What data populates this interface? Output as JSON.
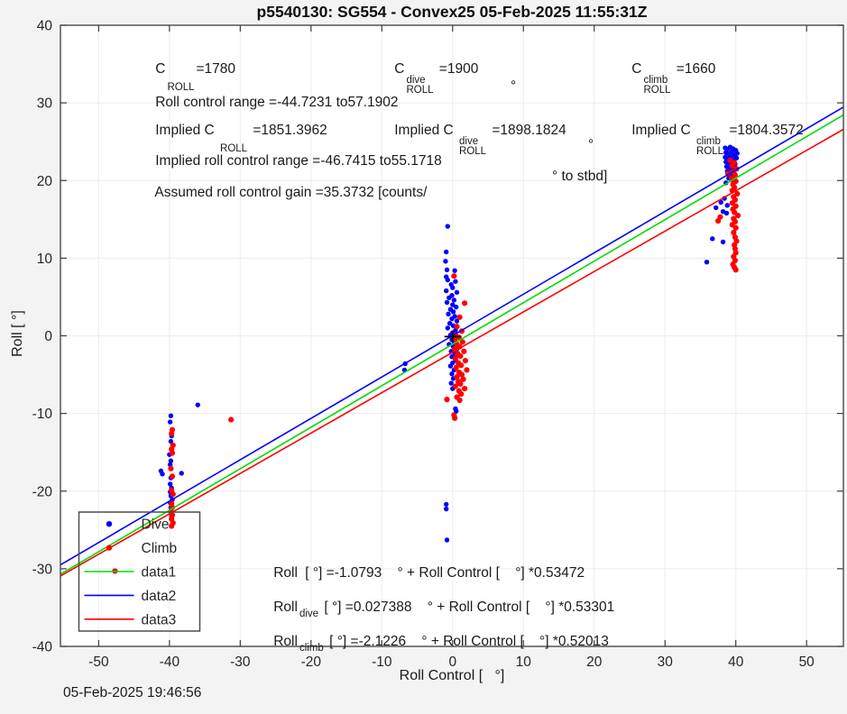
{
  "figure": {
    "title": "p5540130: SG554 - Convex25 05-Feb-2025 11:55:31Z",
    "timestamp": "05-Feb-2025 19:46:56",
    "background_color": "#f3f3f3",
    "plot_background_color": "#ffffff",
    "grid_color": "#ececec",
    "axis_color": "#3c3c3c"
  },
  "annotations": {
    "cr": [
      {
        "pre": "C",
        "sup": "",
        "sub": "ROLL",
        "val": "=1780"
      },
      {
        "pre": "C",
        "sup": "dive",
        "sub": "ROLL",
        "val": " =1900"
      },
      {
        "pre": "C",
        "sup": "climb",
        "sub": "ROLL",
        "val": " =1660"
      }
    ],
    "range_text": "Roll control range =-44.7231 to57.1902",
    "range_deg": "°",
    "implied_cr": [
      {
        "pre": "Implied C ",
        "sup": "",
        "sub": "ROLL",
        "val": " =1851.3962"
      },
      {
        "pre": "Implied C ",
        "sup": "dive",
        "sub": "ROLL",
        "val": " =1898.1824"
      },
      {
        "pre": "Implied C ",
        "sup": "climb",
        "sub": "ROLL",
        "val": " =1804.3572"
      }
    ],
    "implied_range_text": "Implied roll control range =-46.7415 to55.1718",
    "implied_range_deg": "°",
    "gain_a": "Assumed roll control gain =35.3732 [counts/",
    "gain_b": "° to stbd]",
    "equations": [
      {
        "pre": "Roll",
        "sub": "",
        "rest": " [ °] =-1.0793    ° + Roll Control [    °] *0.53472"
      },
      {
        "pre": "Roll",
        "sub": "dive",
        "rest": " [ °] =0.027388    ° + Roll Control [    °] *0.53301"
      },
      {
        "pre": "Roll",
        "sub": "climb",
        "rest": " [ °] =-2.1226    ° + Roll Control [    °] *0.52013"
      }
    ]
  },
  "legend": {
    "items": [
      {
        "label": "Dive",
        "type": "marker",
        "color": "#0000ff"
      },
      {
        "label": "Climb",
        "type": "marker",
        "color": "#ff0000"
      },
      {
        "label": "data1",
        "type": "line",
        "color": "#00dd00"
      },
      {
        "label": "data2",
        "type": "line",
        "color": "#0000ff"
      },
      {
        "label": "data3",
        "type": "line",
        "color": "#ff0000"
      }
    ]
  },
  "chart_data": {
    "type": "scatter",
    "title": "p5540130: SG554 - Convex25 05-Feb-2025 11:55:31Z",
    "xlabel": "Roll Control [   °]",
    "ylabel": "Roll [ °]",
    "xlim": [
      -55.4,
      55.2
    ],
    "ylim": [
      -40,
      40
    ],
    "xticks": [
      -50,
      -40,
      -30,
      -20,
      -10,
      0,
      10,
      20,
      30,
      40,
      50
    ],
    "yticks": [
      -40,
      -30,
      -20,
      -10,
      0,
      10,
      20,
      30,
      40
    ],
    "grid": true,
    "legend_position": "southwest",
    "origin_marker": {
      "x": 0,
      "y": -0.1,
      "half_width_units": 1.15,
      "half_height_units": 0.7,
      "color": "#000000"
    },
    "series": [
      {
        "name": "Dive",
        "type": "scatter",
        "color": "#0000ff",
        "marker_radius": 2.7,
        "points": [
          [
            -39.8,
            -10.3
          ],
          [
            -39.9,
            -11.1
          ],
          [
            -39.7,
            -12.9
          ],
          [
            -39.8,
            -13.6
          ],
          [
            -40.0,
            -15.3
          ],
          [
            -39.8,
            -16.1
          ],
          [
            -39.9,
            -16.6
          ],
          [
            -41.2,
            -17.4
          ],
          [
            -41.0,
            -17.8
          ],
          [
            -38.3,
            -17.7
          ],
          [
            -39.8,
            -18.3
          ],
          [
            -39.9,
            -19.1
          ],
          [
            -39.7,
            -19.6
          ],
          [
            -39.9,
            -20.1
          ],
          [
            -39.8,
            -20.6
          ],
          [
            -39.6,
            -21.1
          ],
          [
            -39.9,
            -21.5
          ],
          [
            -39.8,
            -22.1
          ],
          [
            -39.7,
            -23.2
          ],
          [
            -36.0,
            -8.9
          ],
          [
            -0.7,
            14.1
          ],
          [
            -0.9,
            10.8
          ],
          [
            -1.0,
            9.6
          ],
          [
            -0.8,
            8.5
          ],
          [
            0.3,
            8.4
          ],
          [
            -0.9,
            7.6
          ],
          [
            -0.7,
            7.2
          ],
          [
            0.4,
            7.0
          ],
          [
            -0.2,
            6.6
          ],
          [
            0.0,
            6.2
          ],
          [
            -0.9,
            5.8
          ],
          [
            0.6,
            5.6
          ],
          [
            -0.1,
            5.2
          ],
          [
            -0.5,
            4.9
          ],
          [
            0.2,
            4.6
          ],
          [
            -0.8,
            4.3
          ],
          [
            0.0,
            4.0
          ],
          [
            0.5,
            3.7
          ],
          [
            -0.3,
            3.4
          ],
          [
            0.1,
            3.1
          ],
          [
            -0.6,
            2.8
          ],
          [
            0.3,
            2.5
          ],
          [
            -0.1,
            2.2
          ],
          [
            0.6,
            1.9
          ],
          [
            -0.4,
            1.6
          ],
          [
            0.1,
            1.3
          ],
          [
            -0.7,
            1.0
          ],
          [
            0.4,
            0.7
          ],
          [
            0.0,
            0.4
          ],
          [
            -0.3,
            0.1
          ],
          [
            0.5,
            -0.2
          ],
          [
            -0.1,
            -0.5
          ],
          [
            0.2,
            -0.8
          ],
          [
            -0.5,
            -1.1
          ],
          [
            0.1,
            -1.4
          ],
          [
            0.6,
            -1.7
          ],
          [
            -0.2,
            -2.0
          ],
          [
            0.3,
            -2.3
          ],
          [
            -0.1,
            -2.7
          ],
          [
            0.4,
            -3.1
          ],
          [
            0.0,
            -3.5
          ],
          [
            -0.3,
            -3.9
          ],
          [
            0.2,
            -4.4
          ],
          [
            -0.1,
            -4.9
          ],
          [
            0.1,
            -5.5
          ],
          [
            -0.2,
            -6.1
          ],
          [
            0.0,
            -6.8
          ],
          [
            -6.7,
            -3.6
          ],
          [
            -6.8,
            -4.4
          ],
          [
            0.4,
            -9.4
          ],
          [
            0.5,
            -9.7
          ],
          [
            -0.9,
            -21.7
          ],
          [
            -0.9,
            -22.3
          ],
          [
            -0.8,
            -26.3
          ],
          [
            38.5,
            24.2
          ],
          [
            38.8,
            24.0
          ],
          [
            39.2,
            24.3
          ],
          [
            39.6,
            24.1
          ],
          [
            40.0,
            23.9
          ],
          [
            38.6,
            23.6
          ],
          [
            39.0,
            23.4
          ],
          [
            39.4,
            23.7
          ],
          [
            39.8,
            23.3
          ],
          [
            40.2,
            23.5
          ],
          [
            38.5,
            23.0
          ],
          [
            38.9,
            22.8
          ],
          [
            39.3,
            23.1
          ],
          [
            39.7,
            22.7
          ],
          [
            40.1,
            22.9
          ],
          [
            38.6,
            22.4
          ],
          [
            39.1,
            22.2
          ],
          [
            39.5,
            22.5
          ],
          [
            39.9,
            22.1
          ],
          [
            38.7,
            21.8
          ],
          [
            39.2,
            21.6
          ],
          [
            39.6,
            21.9
          ],
          [
            40.0,
            21.5
          ],
          [
            38.8,
            21.2
          ],
          [
            39.3,
            21.0
          ],
          [
            39.7,
            21.3
          ],
          [
            38.9,
            20.8
          ],
          [
            39.4,
            20.6
          ],
          [
            39.8,
            20.9
          ],
          [
            39.0,
            20.3
          ],
          [
            39.5,
            20.1
          ],
          [
            38.6,
            19.7
          ],
          [
            38.4,
            17.7
          ],
          [
            37.9,
            17.2
          ],
          [
            38.8,
            16.8
          ],
          [
            37.2,
            16.5
          ],
          [
            38.2,
            16.0
          ],
          [
            38.7,
            15.8
          ],
          [
            36.7,
            12.5
          ],
          [
            38.2,
            12.1
          ],
          [
            35.9,
            9.5
          ]
        ]
      },
      {
        "name": "Climb",
        "type": "scatter",
        "color": "#ff0000",
        "marker_radius": 3.1,
        "points": [
          [
            -39.6,
            -12.1
          ],
          [
            -39.7,
            -12.6
          ],
          [
            -39.5,
            -14.1
          ],
          [
            -39.7,
            -14.6
          ],
          [
            -39.6,
            -15.1
          ],
          [
            -39.8,
            -17.1
          ],
          [
            -39.6,
            -18.1
          ],
          [
            -39.7,
            -19.9
          ],
          [
            -39.5,
            -20.4
          ],
          [
            -39.7,
            -21.6
          ],
          [
            -39.6,
            -22.1
          ],
          [
            -39.8,
            -22.6
          ],
          [
            -39.6,
            -23.1
          ],
          [
            -39.7,
            -23.6
          ],
          [
            -39.5,
            -24.1
          ],
          [
            -39.7,
            -24.5
          ],
          [
            -31.3,
            -10.8
          ],
          [
            -47.7,
            -30.3
          ],
          [
            0.2,
            7.7
          ],
          [
            1.7,
            4.2
          ],
          [
            1.0,
            2.4
          ],
          [
            0.6,
            1.2
          ],
          [
            1.3,
            0.6
          ],
          [
            0.4,
            0.1
          ],
          [
            0.9,
            -0.2
          ],
          [
            0.3,
            -0.5
          ],
          [
            1.4,
            -0.8
          ],
          [
            0.6,
            -1.1
          ],
          [
            1.0,
            -1.4
          ],
          [
            0.3,
            -1.7
          ],
          [
            1.6,
            -2.0
          ],
          [
            0.7,
            -2.3
          ],
          [
            1.1,
            -2.6
          ],
          [
            0.4,
            -2.9
          ],
          [
            1.8,
            -3.2
          ],
          [
            0.8,
            -3.5
          ],
          [
            1.2,
            -3.8
          ],
          [
            0.5,
            -4.1
          ],
          [
            2.0,
            -4.4
          ],
          [
            0.9,
            -4.7
          ],
          [
            1.3,
            -5.0
          ],
          [
            0.6,
            -5.3
          ],
          [
            1.5,
            -5.6
          ],
          [
            0.8,
            -5.9
          ],
          [
            1.1,
            -6.2
          ],
          [
            0.4,
            -6.5
          ],
          [
            1.7,
            -6.8
          ],
          [
            0.9,
            -7.1
          ],
          [
            1.2,
            -7.5
          ],
          [
            0.6,
            -7.9
          ],
          [
            1.0,
            -8.3
          ],
          [
            -0.8,
            -8.2
          ],
          [
            0.2,
            -10.2
          ],
          [
            0.3,
            -10.6
          ],
          [
            39.2,
            22.6
          ],
          [
            39.8,
            22.3
          ],
          [
            39.5,
            21.9
          ],
          [
            40.1,
            21.5
          ],
          [
            39.6,
            21.1
          ],
          [
            38.9,
            20.9
          ],
          [
            39.9,
            20.7
          ],
          [
            39.4,
            20.3
          ],
          [
            40.0,
            19.9
          ],
          [
            39.6,
            19.5
          ],
          [
            39.8,
            19.1
          ],
          [
            39.5,
            18.7
          ],
          [
            40.2,
            18.3
          ],
          [
            39.7,
            17.9
          ],
          [
            39.9,
            17.5
          ],
          [
            39.5,
            17.1
          ],
          [
            40.0,
            16.7
          ],
          [
            39.6,
            16.3
          ],
          [
            39.8,
            15.9
          ],
          [
            40.3,
            15.5
          ],
          [
            39.7,
            15.1
          ],
          [
            37.8,
            15.3
          ],
          [
            37.5,
            14.8
          ],
          [
            39.9,
            14.7
          ],
          [
            39.5,
            14.3
          ],
          [
            40.0,
            13.9
          ],
          [
            39.7,
            13.3
          ],
          [
            39.9,
            12.7
          ],
          [
            40.1,
            12.2
          ],
          [
            39.8,
            11.7
          ],
          [
            39.9,
            11.2
          ],
          [
            40.0,
            10.7
          ],
          [
            39.7,
            10.2
          ],
          [
            39.9,
            9.7
          ],
          [
            39.6,
            9.2
          ],
          [
            39.8,
            8.8
          ],
          [
            40.0,
            8.5
          ]
        ]
      },
      {
        "name": "data1",
        "type": "line",
        "color": "#00dd00",
        "intercept": -1.0793,
        "slope": 0.53472
      },
      {
        "name": "data2",
        "type": "line",
        "color": "#0000ff",
        "intercept": 0.027388,
        "slope": 0.53301
      },
      {
        "name": "data3",
        "type": "line",
        "color": "#ff0000",
        "intercept": -2.1226,
        "slope": 0.52013
      }
    ]
  }
}
